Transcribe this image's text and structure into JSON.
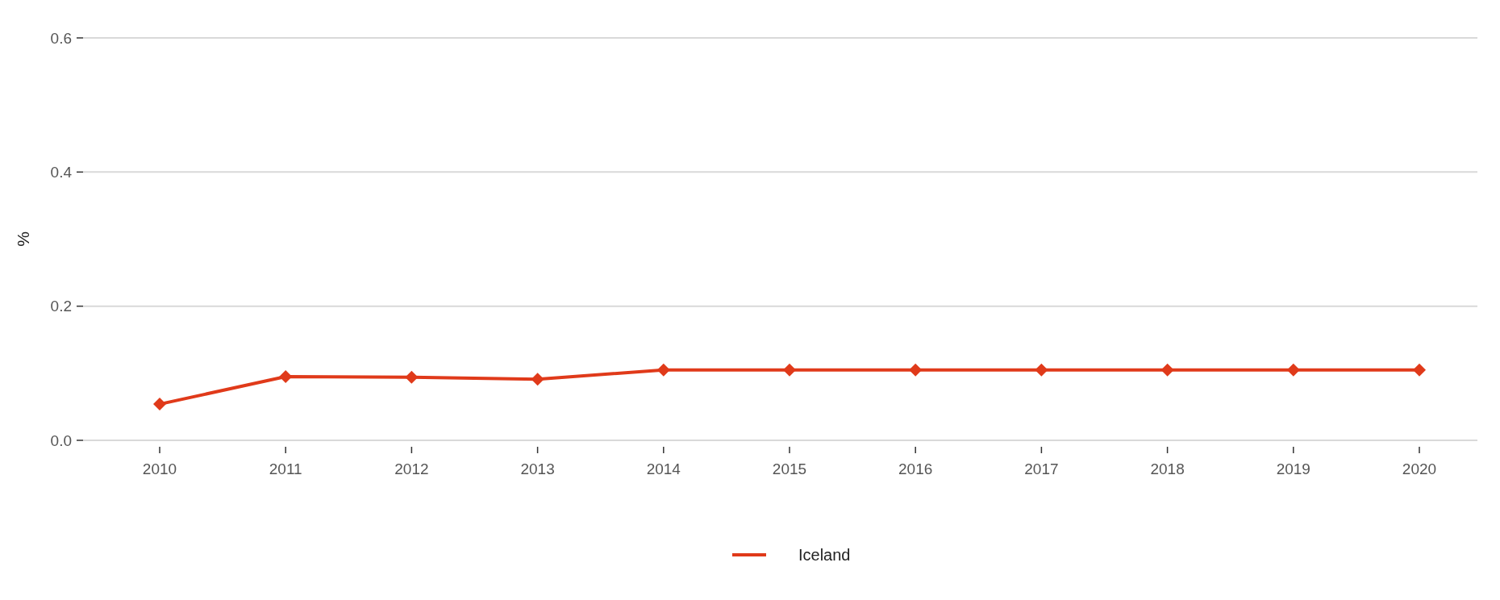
{
  "chart_data": {
    "type": "line",
    "ylabel": "%",
    "categories": [
      "2010",
      "2011",
      "2012",
      "2013",
      "2014",
      "2015",
      "2016",
      "2017",
      "2018",
      "2019",
      "2020"
    ],
    "series": [
      {
        "name": "Iceland",
        "color": "#e03a1a",
        "values": [
          0.054,
          0.095,
          0.094,
          0.091,
          0.105,
          0.105,
          0.105,
          0.105,
          0.105,
          0.105,
          0.105
        ]
      }
    ],
    "ylim": [
      0,
      0.6
    ],
    "yticks": [
      {
        "value": 0,
        "label": "0.0"
      },
      {
        "value": 0.2,
        "label": "0.2"
      },
      {
        "value": 0.4,
        "label": "0.4"
      },
      {
        "value": 0.6,
        "label": "0.6"
      }
    ],
    "grid": "y",
    "legend": "bottom",
    "marker": "diamond",
    "line_style": "solid"
  }
}
